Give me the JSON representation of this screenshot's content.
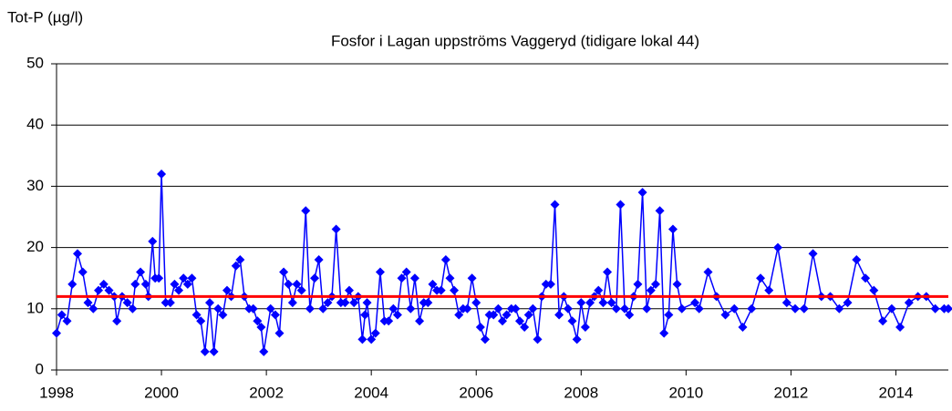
{
  "chart_data": {
    "type": "line",
    "title": "Fosfor i Lagan uppströms Vaggeryd (tidigare lokal 44)",
    "ylabel": "Tot-P (µg/l)",
    "xlim": [
      1998,
      2015
    ],
    "xticks": [
      1998,
      2000,
      2002,
      2004,
      2006,
      2008,
      2010,
      2012,
      2014
    ],
    "ylim": [
      0,
      50
    ],
    "yticks": [
      0,
      10,
      20,
      30,
      40,
      50
    ],
    "grid": true,
    "series": [
      {
        "color": "#0000ff",
        "marker": "diamond",
        "x": [
          1998.0,
          1998.1,
          1998.2,
          1998.3,
          1998.4,
          1998.5,
          1998.6,
          1998.7,
          1998.8,
          1998.9,
          1999.0,
          1999.1,
          1999.15,
          1999.25,
          1999.35,
          1999.45,
          1999.5,
          1999.6,
          1999.7,
          1999.75,
          1999.83,
          1999.88,
          1999.95,
          2000.0,
          2000.08,
          2000.17,
          2000.25,
          2000.33,
          2000.42,
          2000.5,
          2000.58,
          2000.67,
          2000.75,
          2000.83,
          2000.92,
          2001.0,
          2001.08,
          2001.17,
          2001.25,
          2001.33,
          2001.42,
          2001.5,
          2001.58,
          2001.67,
          2001.75,
          2001.83,
          2001.9,
          2001.95,
          2002.08,
          2002.17,
          2002.25,
          2002.33,
          2002.42,
          2002.5,
          2002.58,
          2002.67,
          2002.75,
          2002.83,
          2002.92,
          2003.0,
          2003.08,
          2003.17,
          2003.25,
          2003.33,
          2003.42,
          2003.5,
          2003.58,
          2003.67,
          2003.75,
          2003.83,
          2003.88,
          2003.92,
          2004.0,
          2004.08,
          2004.17,
          2004.25,
          2004.33,
          2004.42,
          2004.5,
          2004.58,
          2004.67,
          2004.75,
          2004.83,
          2004.92,
          2005.0,
          2005.08,
          2005.17,
          2005.25,
          2005.33,
          2005.42,
          2005.5,
          2005.58,
          2005.67,
          2005.75,
          2005.83,
          2005.92,
          2006.0,
          2006.08,
          2006.17,
          2006.25,
          2006.33,
          2006.42,
          2006.5,
          2006.58,
          2006.67,
          2006.75,
          2006.83,
          2006.92,
          2007.0,
          2007.08,
          2007.17,
          2007.25,
          2007.33,
          2007.42,
          2007.5,
          2007.58,
          2007.67,
          2007.75,
          2007.83,
          2007.92,
          2008.0,
          2008.08,
          2008.17,
          2008.25,
          2008.33,
          2008.42,
          2008.5,
          2008.58,
          2008.67,
          2008.75,
          2008.83,
          2008.92,
          2009.0,
          2009.08,
          2009.17,
          2009.25,
          2009.33,
          2009.42,
          2009.5,
          2009.58,
          2009.67,
          2009.75,
          2009.83,
          2009.92,
          2010.17,
          2010.25,
          2010.42,
          2010.58,
          2010.75,
          2010.92,
          2011.08,
          2011.25,
          2011.42,
          2011.58,
          2011.75,
          2011.92,
          2012.08,
          2012.25,
          2012.42,
          2012.58,
          2012.75,
          2012.92,
          2013.08,
          2013.25,
          2013.42,
          2013.58,
          2013.75,
          2013.92,
          2014.08,
          2014.25,
          2014.42,
          2014.58,
          2014.75,
          2014.92,
          2015.0
        ],
        "values": [
          6,
          9,
          8,
          14,
          19,
          16,
          11,
          10,
          13,
          14,
          13,
          12,
          8,
          12,
          11,
          10,
          14,
          16,
          14,
          12,
          21,
          15,
          15,
          32,
          11,
          11,
          14,
          13,
          15,
          14,
          15,
          9,
          8,
          3,
          11,
          3,
          10,
          9,
          13,
          12,
          17,
          18,
          12,
          10,
          10,
          8,
          7,
          3,
          10,
          9,
          6,
          16,
          14,
          11,
          14,
          13,
          26,
          10,
          15,
          18,
          10,
          11,
          12,
          23,
          11,
          11,
          13,
          11,
          12,
          5,
          9,
          11,
          5,
          6,
          16,
          8,
          8,
          10,
          9,
          15,
          16,
          10,
          15,
          8,
          11,
          11,
          14,
          13,
          13,
          18,
          15,
          13,
          9,
          10,
          10,
          15,
          11,
          7,
          5,
          9,
          9,
          10,
          8,
          9,
          10,
          10,
          8,
          7,
          9,
          10,
          5,
          12,
          14,
          14,
          27,
          9,
          12,
          10,
          8,
          5,
          11,
          7,
          11,
          12,
          13,
          11,
          16,
          11,
          10,
          27,
          10,
          9,
          12,
          14,
          29,
          10,
          13,
          14,
          26,
          6,
          9,
          23,
          14,
          10,
          11,
          10,
          16,
          12,
          9,
          10,
          7,
          10,
          15,
          13,
          20,
          11,
          10,
          10,
          19,
          12,
          12,
          10,
          11,
          18,
          15,
          13,
          8,
          10,
          7,
          11,
          12,
          12,
          10,
          10,
          10
        ]
      },
      {
        "color": "#ff0000",
        "x": [
          1998,
          2015
        ],
        "values": [
          12,
          12
        ]
      }
    ]
  }
}
